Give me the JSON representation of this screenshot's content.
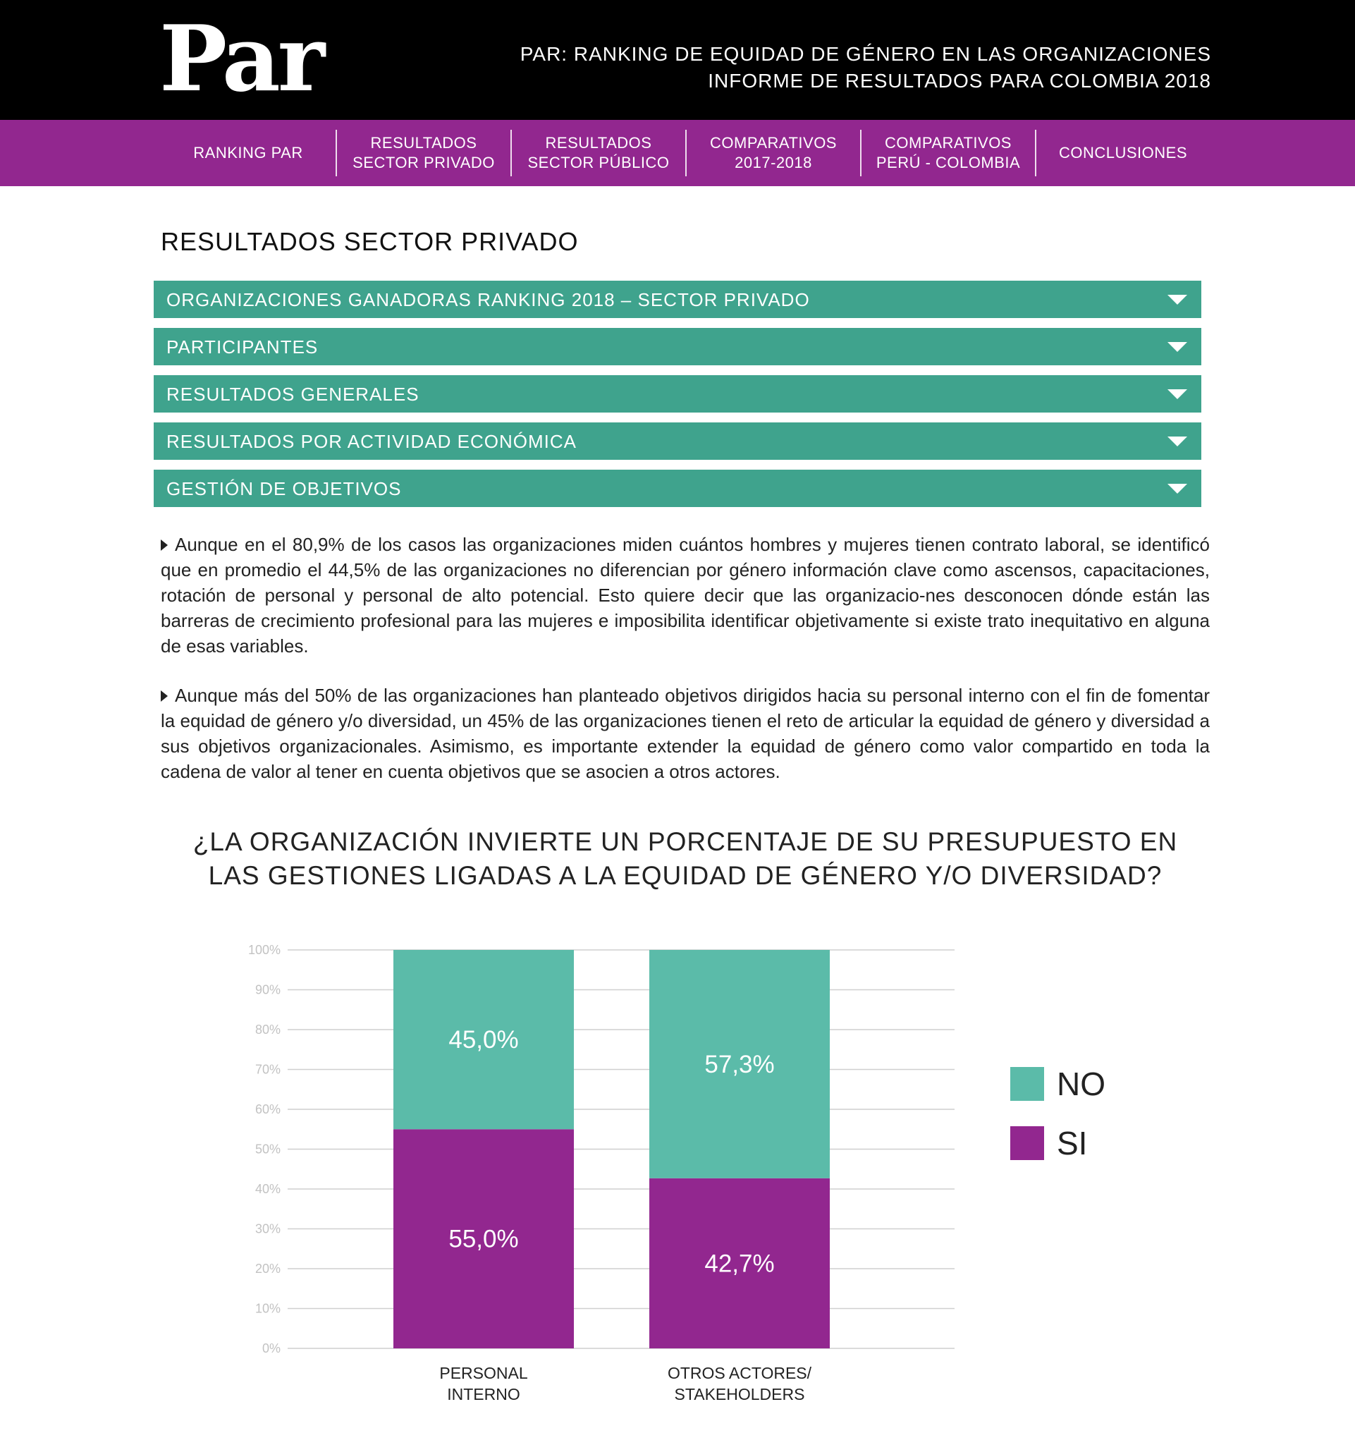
{
  "header": {
    "logo_text": "Par",
    "title_line1": "PAR: RANKING DE EQUIDAD DE GÉNERO EN LAS ORGANIZACIONES",
    "title_line2": "INFORME DE RESULTADOS PARA COLOMBIA 2018"
  },
  "nav": {
    "items": [
      {
        "label": "RANKING PAR"
      },
      {
        "label": "RESULTADOS\nSECTOR PRIVADO"
      },
      {
        "label": "RESULTADOS\nSECTOR PÚBLICO"
      },
      {
        "label": "COMPARATIVOS\n2017-2018"
      },
      {
        "label": "COMPARATIVOS\nPERÚ - COLOMBIA"
      },
      {
        "label": "CONCLUSIONES"
      }
    ]
  },
  "main": {
    "section_title": "RESULTADOS SECTOR PRIVADO",
    "accordion": [
      {
        "label": "ORGANIZACIONES GANADORAS RANKING 2018 – SECTOR PRIVADO"
      },
      {
        "label": "PARTICIPANTES"
      },
      {
        "label": "RESULTADOS GENERALES"
      },
      {
        "label": "RESULTADOS POR ACTIVIDAD ECONÓMICA"
      },
      {
        "label": "GESTIÓN DE OBJETIVOS"
      }
    ],
    "paragraph1": "Aunque en el 80,9% de los casos las organizaciones miden cuántos hombres y mujeres tienen contrato laboral, se identificó que en promedio el 44,5% de las organizaciones no diferencian por género información clave como ascensos, capacitaciones, rotación de personal y personal de alto potencial. Esto quiere decir que las organizacio-nes desconocen dónde están las barreras de crecimiento profesional para las mujeres e imposibilita identificar objetivamente si existe trato inequitativo en alguna de esas variables.",
    "paragraph2": "Aunque más del 50% de las organizaciones han planteado objetivos dirigidos hacia su personal interno con el fin de fomentar la equidad de género y/o diversidad, un 45% de las organizaciones tienen el reto de articular la equidad de género y diversidad a sus objetivos organizacionales. Asimismo, es importante extender la equidad de género como valor compartido en toda la cadena de valor al tener en cuenta objetivos que se asocien a otros actores."
  },
  "chart_data": {
    "type": "bar",
    "stacked": true,
    "title": "¿LA ORGANIZACIÓN INVIERTE UN PORCENTAJE DE SU PRESUPUESTO EN\nLAS GESTIONES LIGADAS A LA EQUIDAD DE GÉNERO Y/O DIVERSIDAD?",
    "categories": [
      "PERSONAL\nINTERNO",
      "OTROS ACTORES/\nSTAKEHOLDERS"
    ],
    "series": [
      {
        "name": "SI",
        "color": "#92278f",
        "values": [
          55.0,
          42.7
        ],
        "labels": [
          "55,0%",
          "42,7%"
        ]
      },
      {
        "name": "NO",
        "color": "#5bbba9",
        "values": [
          45.0,
          57.3
        ],
        "labels": [
          "45,0%",
          "57,3%"
        ]
      }
    ],
    "ylim": [
      0,
      100
    ],
    "yticks": [
      "0%",
      "10%",
      "20%",
      "30%",
      "40%",
      "50%",
      "60%",
      "70%",
      "80%",
      "90%",
      "100%"
    ],
    "grid": true,
    "legend_position": "right",
    "legend_order": [
      "NO",
      "SI"
    ]
  }
}
